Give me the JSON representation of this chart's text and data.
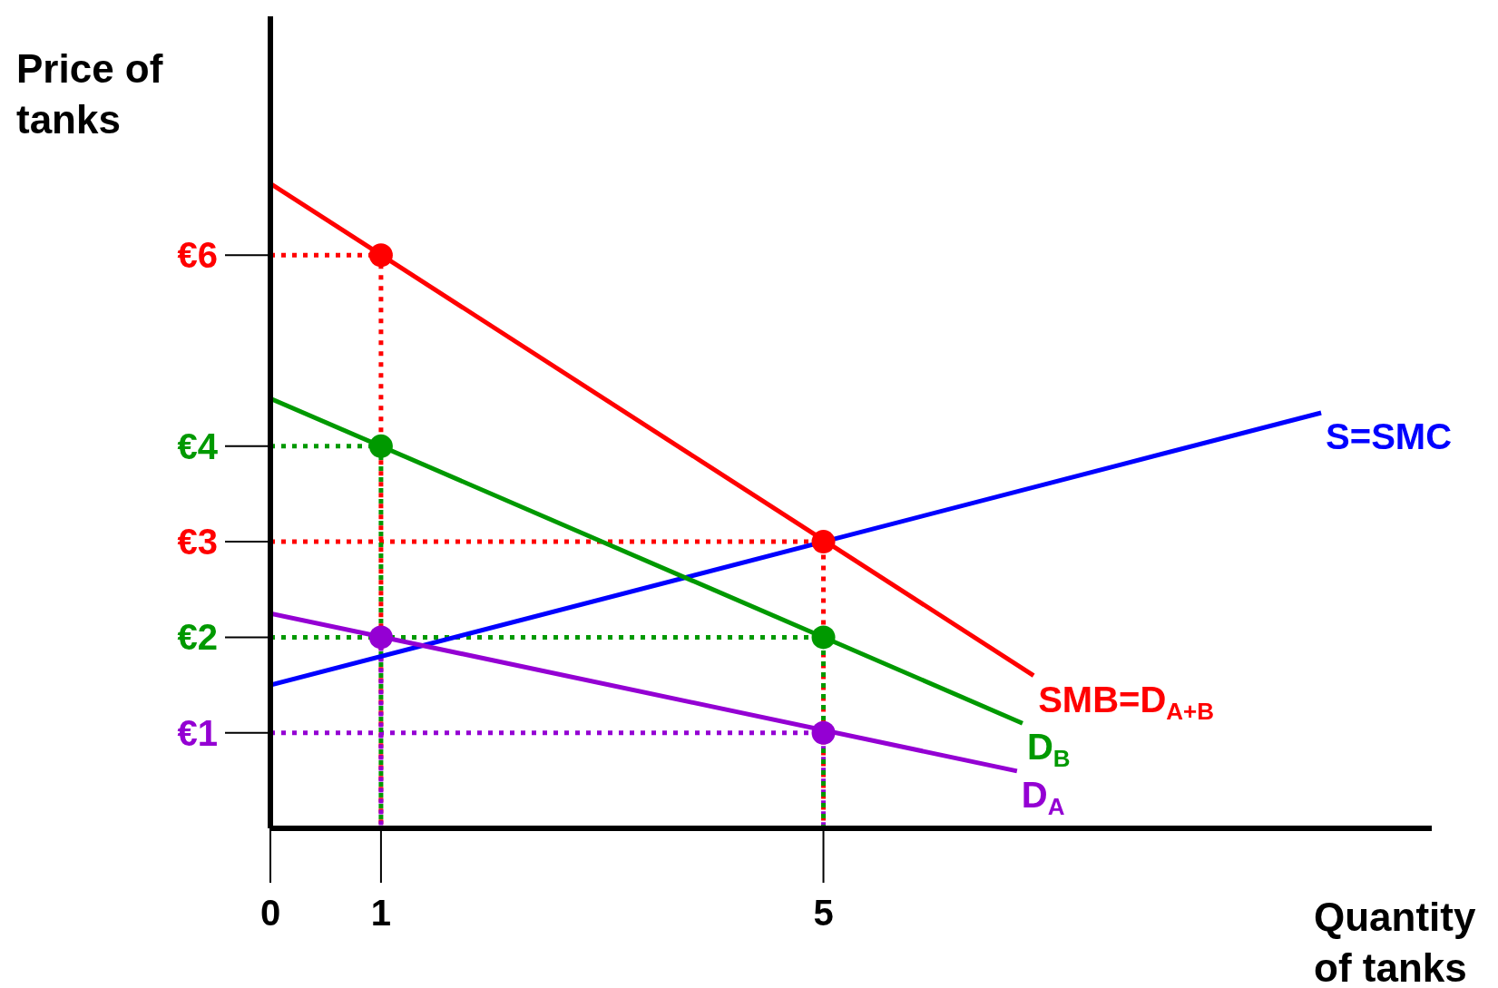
{
  "chart_data": {
    "type": "line",
    "xlabel": "Quantity of tanks",
    "ylabel": "Price of tanks",
    "xlim": [
      0,
      10.5
    ],
    "ylim": [
      0,
      8.5
    ],
    "xticks": [
      0,
      1,
      5
    ],
    "yticks": [
      {
        "value": 1,
        "label": "€1"
      },
      {
        "value": 2,
        "label": "€2"
      },
      {
        "value": 3,
        "label": "€3"
      },
      {
        "value": 4,
        "label": "€4"
      },
      {
        "value": 6,
        "label": "€6"
      }
    ],
    "series": [
      {
        "type": "line",
        "line_style": "dotted",
        "marker": "none",
        "color": "#ff0000",
        "x": [
          0,
          1,
          1
        ],
        "values": [
          6,
          6,
          0
        ]
      },
      {
        "type": "line",
        "line_style": "dotted",
        "marker": "none",
        "color": "#ff0000",
        "x": [
          0,
          5,
          5
        ],
        "values": [
          3,
          3,
          0
        ]
      },
      {
        "type": "line",
        "line_style": "dotted",
        "marker": "none",
        "color": "#9400d3",
        "x": [
          0,
          1,
          1
        ],
        "values": [
          2,
          2,
          0
        ]
      },
      {
        "type": "line",
        "line_style": "dotted",
        "marker": "none",
        "color": "#9400d3",
        "x": [
          0,
          5,
          5
        ],
        "values": [
          1,
          1,
          0
        ]
      },
      {
        "type": "line",
        "line_style": "dotted",
        "marker": "none",
        "color": "#009900",
        "x": [
          0,
          1,
          1
        ],
        "values": [
          4,
          4,
          0
        ]
      },
      {
        "type": "line",
        "line_style": "dotted",
        "marker": "none",
        "color": "#009900",
        "x": [
          0,
          5,
          5
        ],
        "values": [
          2,
          2,
          0
        ]
      },
      {
        "name": "S=SMC",
        "line_style": "solid",
        "marker": "none",
        "color": "#0000ff",
        "x": [
          0,
          9.5
        ],
        "values": [
          1.5,
          4.35
        ]
      },
      {
        "name": "SMB=D$_{A+B}$",
        "line_style": "solid",
        "marker": "none",
        "color": "#ff0000",
        "x": [
          0,
          6.9
        ],
        "values": [
          6.75,
          1.6
        ]
      },
      {
        "name": "D$_{B}$",
        "line_style": "solid",
        "marker": "none",
        "color": "#009900",
        "x": [
          0,
          6.8
        ],
        "values": [
          4.5,
          1.1
        ]
      },
      {
        "name": "D$_{A}$",
        "line_style": "solid",
        "marker": "none",
        "color": "#9400d3",
        "x": [
          0,
          6.75
        ],
        "values": [
          2.25,
          0.6
        ]
      },
      {
        "type": "scatter",
        "marker": "circle",
        "color": "#ff0000",
        "x": [
          1,
          5
        ],
        "values": [
          6,
          3
        ]
      },
      {
        "type": "scatter",
        "marker": "circle",
        "color": "#009900",
        "x": [
          1,
          5
        ],
        "values": [
          4,
          2
        ]
      },
      {
        "type": "scatter",
        "marker": "circle",
        "color": "#9400d3",
        "x": [
          1,
          5
        ],
        "values": [
          2,
          1
        ]
      }
    ]
  }
}
